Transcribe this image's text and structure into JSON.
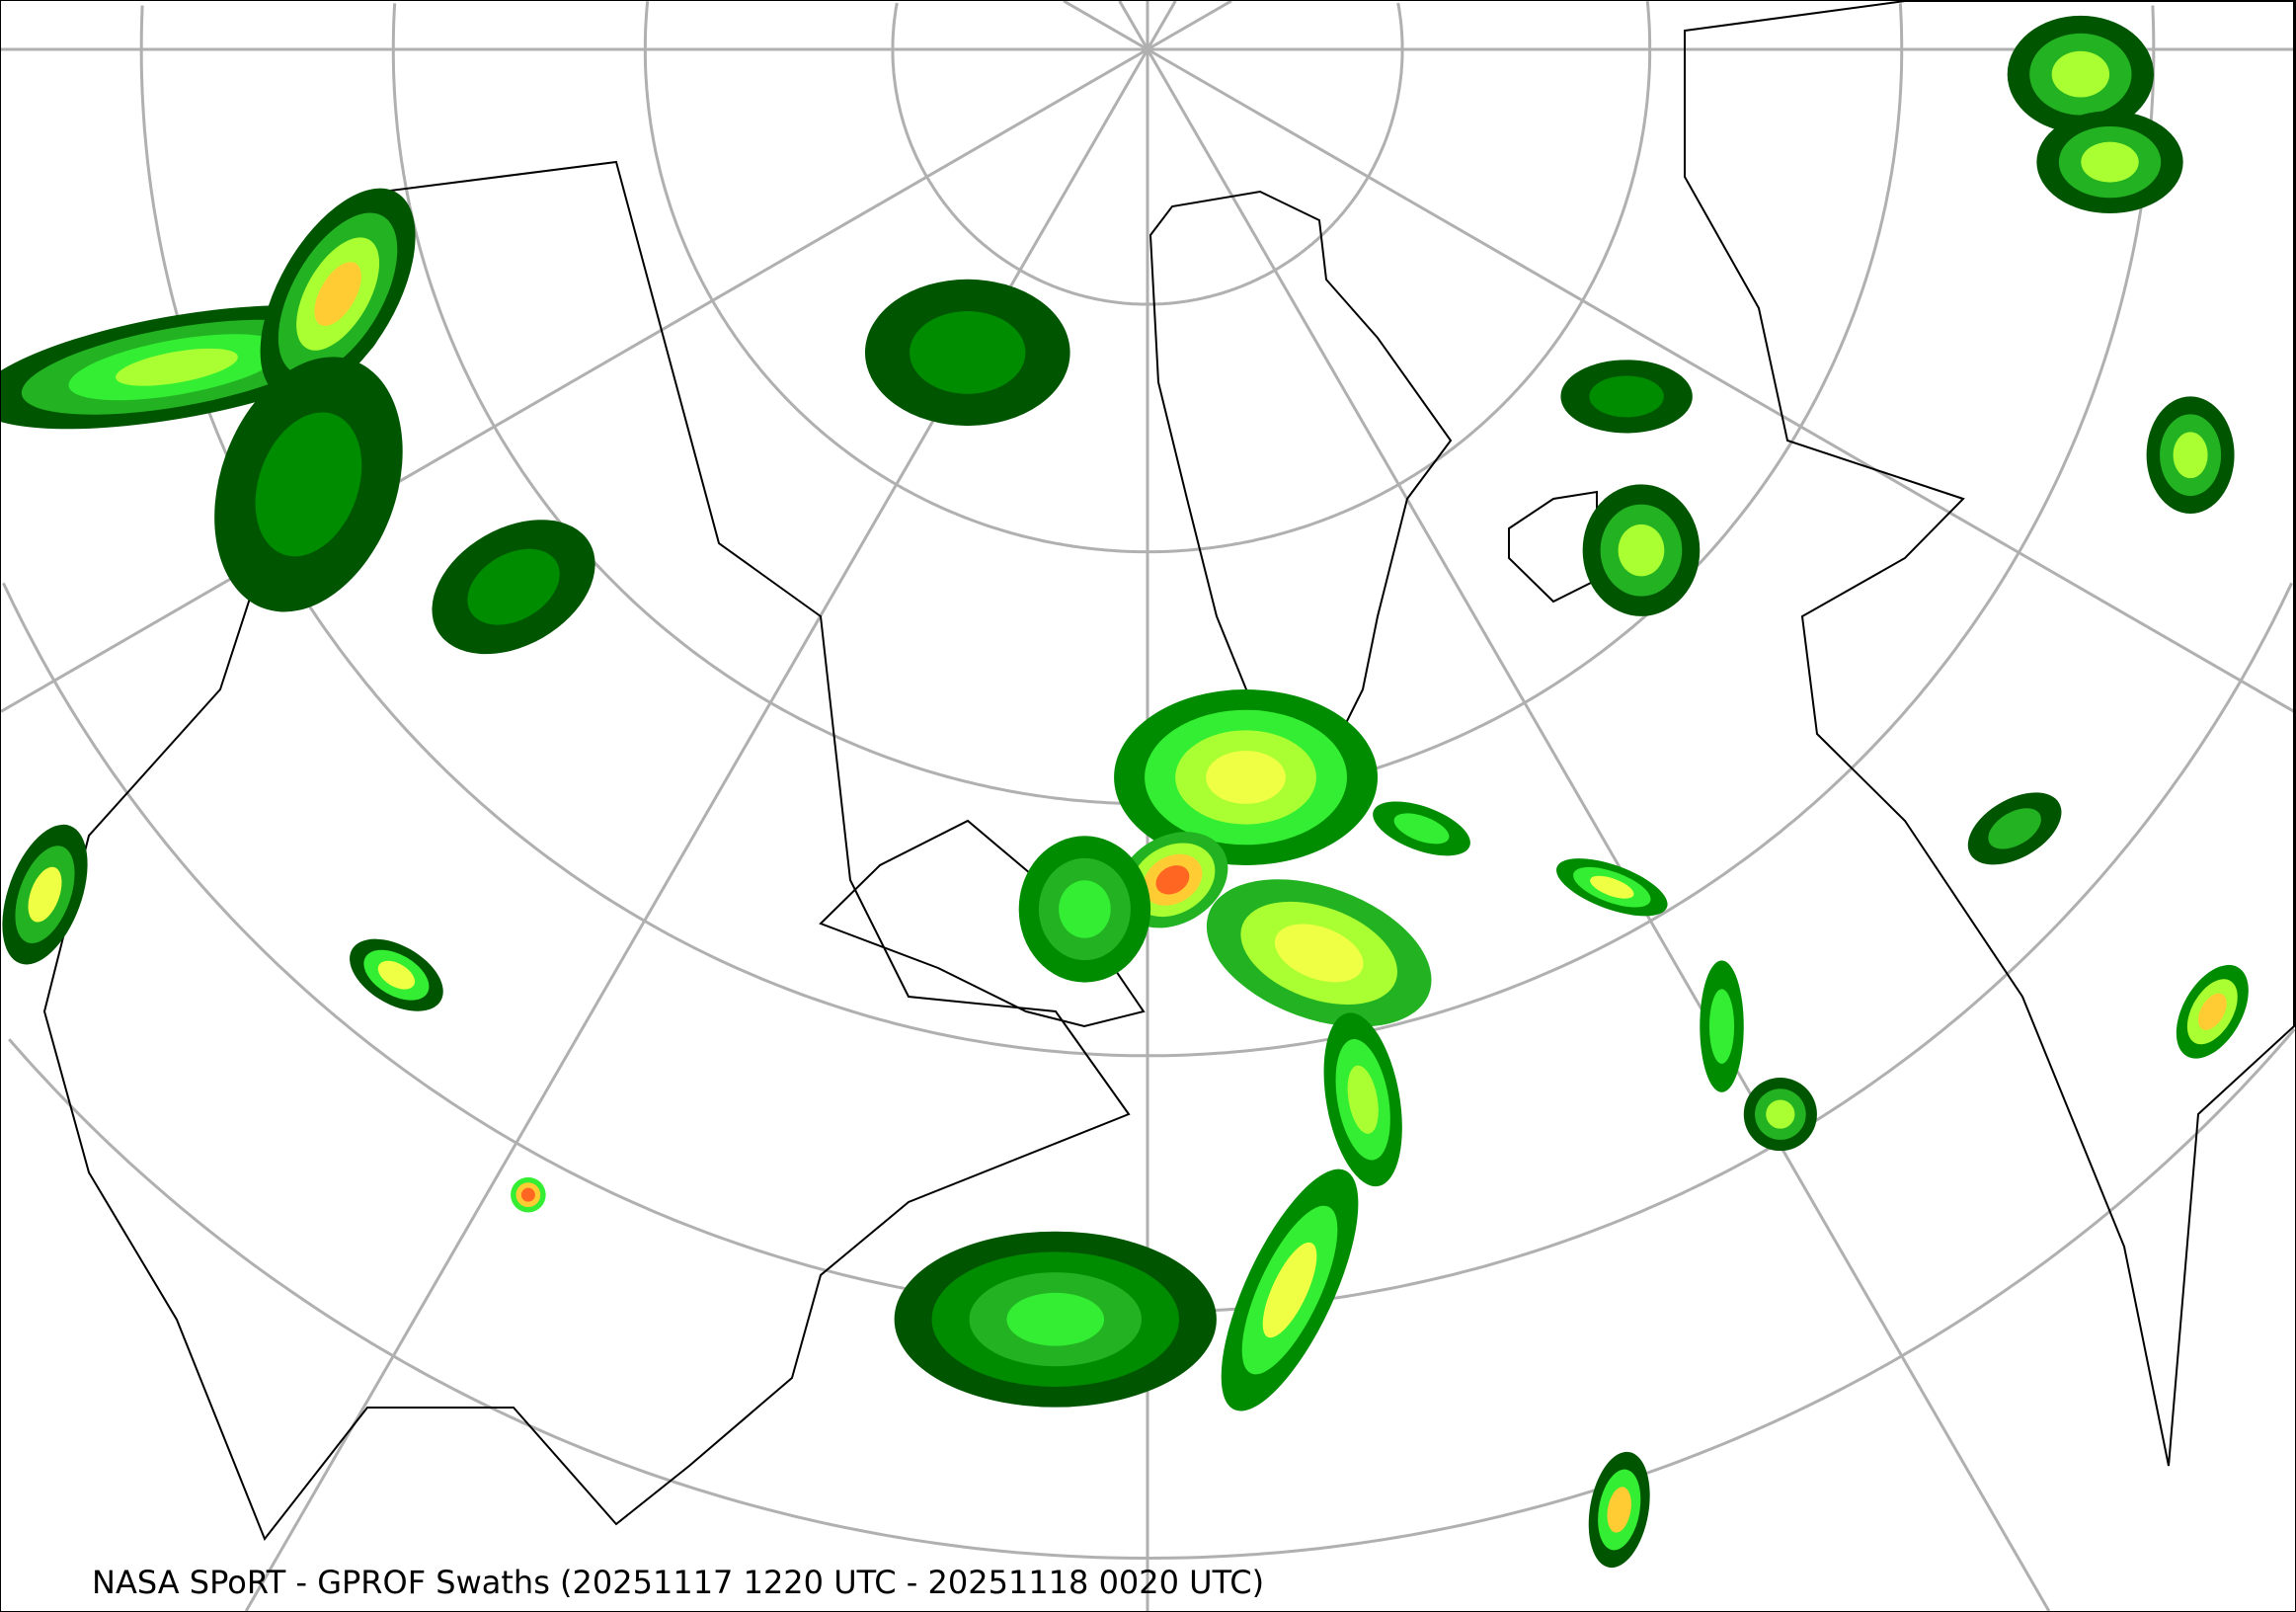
{
  "caption": "NASA SPoRT - GPROF Swaths (20251117 1220 UTC - 20251118 0020 UTC)",
  "map": {
    "projection": "north-polar-stereographic",
    "graticule_color": "#b0b0b0",
    "boundary_color": "#000000",
    "background": "#ffffff"
  },
  "precip_colors": [
    "#005500",
    "#008c00",
    "#22b222",
    "#33ee33",
    "#aaff33",
    "#eeff44",
    "#ffcc33",
    "#ff6622"
  ]
}
